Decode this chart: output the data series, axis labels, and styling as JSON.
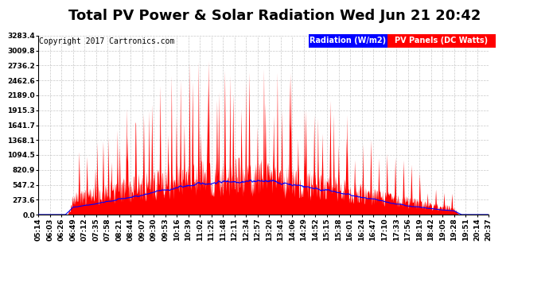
{
  "title": "Total PV Power & Solar Radiation Wed Jun 21 20:42",
  "copyright": "Copyright 2017 Cartronics.com",
  "yticks": [
    0.0,
    273.6,
    547.2,
    820.9,
    1094.5,
    1368.1,
    1641.7,
    1915.3,
    2189.0,
    2462.6,
    2736.2,
    3009.8,
    3283.4
  ],
  "ytick_labels": [
    "0.0",
    "273.6",
    "547.2",
    "820.9",
    "1094.5",
    "1368.1",
    "1641.7",
    "1915.3",
    "2189.0",
    "2462.6",
    "2736.2",
    "3009.8",
    "3283.4"
  ],
  "ymax": 3283.4,
  "xtick_labels": [
    "05:14",
    "06:03",
    "06:26",
    "06:49",
    "07:12",
    "07:35",
    "07:58",
    "08:21",
    "08:44",
    "09:07",
    "09:30",
    "09:53",
    "10:16",
    "10:39",
    "11:02",
    "11:25",
    "11:48",
    "12:11",
    "12:34",
    "12:57",
    "13:20",
    "13:43",
    "14:06",
    "14:29",
    "14:52",
    "15:15",
    "15:38",
    "16:01",
    "16:24",
    "16:47",
    "17:10",
    "17:33",
    "17:56",
    "18:19",
    "18:42",
    "19:05",
    "19:28",
    "19:51",
    "20:14",
    "20:37"
  ],
  "pv_color": "#FF0000",
  "radiation_color": "#0000FF",
  "background_color": "#FFFFFF",
  "plot_bg_color": "#FFFFFF",
  "grid_color": "#BBBBBB",
  "legend_radiation_bg": "#0000FF",
  "legend_pv_bg": "#FF0000",
  "legend_text_color": "#FFFFFF",
  "title_fontsize": 13,
  "copyright_fontsize": 7,
  "tick_fontsize": 6.5,
  "legend_fontsize": 7
}
